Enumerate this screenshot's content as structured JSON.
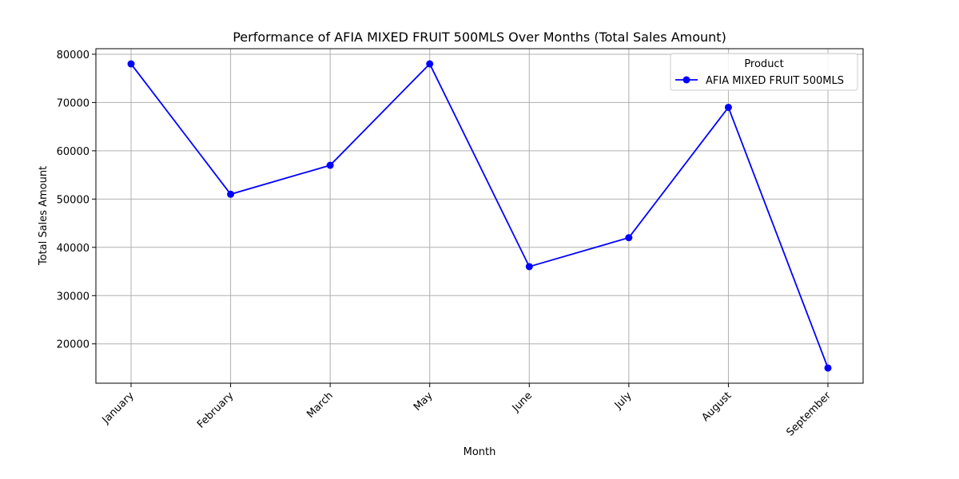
{
  "chart_data": {
    "type": "line",
    "title": "Performance of AFIA MIXED FRUIT 500MLS Over Months (Total Sales Amount)",
    "xlabel": "Month",
    "ylabel": "Total Sales Amount",
    "categories": [
      "January",
      "February",
      "March",
      "May",
      "June",
      "July",
      "August",
      "September"
    ],
    "series": [
      {
        "name": "AFIA MIXED FRUIT 500MLS",
        "color": "#0000ff",
        "marker": "circle",
        "values": [
          78000,
          51000,
          57000,
          78000,
          36000,
          42000,
          69000,
          15000
        ]
      }
    ],
    "ylim": [
      11850,
      81150
    ],
    "yticks": [
      20000,
      30000,
      40000,
      50000,
      60000,
      70000,
      80000
    ],
    "grid": true,
    "legend": {
      "title": "Product",
      "placement": "top-right"
    }
  }
}
